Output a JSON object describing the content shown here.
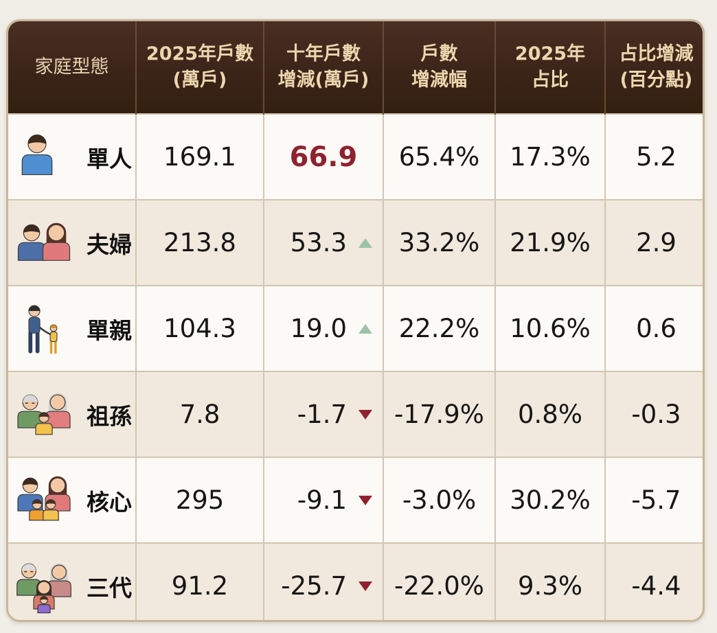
{
  "chart_data": {
    "type": "table",
    "columns": [
      {
        "line1": "家庭型態",
        "line2": ""
      },
      {
        "line1": "2025年戶數",
        "line2": "(萬戶)"
      },
      {
        "line1": "十年戶數",
        "line2": "增減(萬戶)"
      },
      {
        "line1": "戶數",
        "line2": "增減幅"
      },
      {
        "line1": "2025年",
        "line2": "占比"
      },
      {
        "line1": "占比增減",
        "line2": "(百分點)"
      }
    ],
    "rows": [
      {
        "type": "單人",
        "icon": "single-person-icon",
        "households": "169.1",
        "change": "66.9",
        "trend": "highlight",
        "change_pct": "65.4%",
        "share": "17.3%",
        "share_change": "5.2"
      },
      {
        "type": "夫婦",
        "icon": "couple-icon",
        "households": "213.8",
        "change": "53.3",
        "trend": "up",
        "change_pct": "33.2%",
        "share": "21.9%",
        "share_change": "2.9"
      },
      {
        "type": "單親",
        "icon": "single-parent-icon",
        "households": "104.3",
        "change": "19.0",
        "trend": "up",
        "change_pct": "22.2%",
        "share": "10.6%",
        "share_change": "0.6"
      },
      {
        "type": "祖孫",
        "icon": "grandparents-grandchild-icon",
        "households": "7.8",
        "change": "-1.7",
        "trend": "down",
        "change_pct": "-17.9%",
        "share": "0.8%",
        "share_change": "-0.3"
      },
      {
        "type": "核心",
        "icon": "nuclear-family-icon",
        "households": "295",
        "change": "-9.1",
        "trend": "down",
        "change_pct": "-3.0%",
        "share": "30.2%",
        "share_change": "-5.7"
      },
      {
        "type": "三代",
        "icon": "three-generation-icon",
        "households": "91.2",
        "change": "-25.7",
        "trend": "down",
        "change_pct": "-22.0%",
        "share": "9.3%",
        "share_change": "-4.4"
      }
    ]
  },
  "colors": {
    "header_bg": "#3b2419",
    "header_text": "#ecd6ae",
    "highlight": "#8f2230",
    "up_arrow": "#9cc3a6",
    "down_arrow": "#8f2230"
  }
}
